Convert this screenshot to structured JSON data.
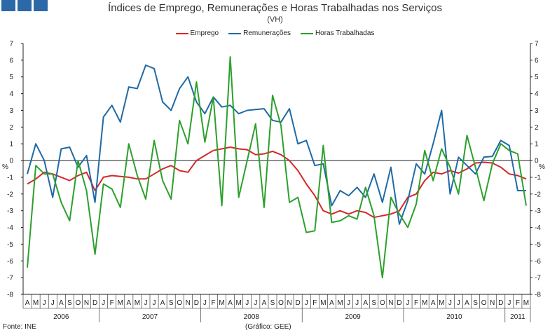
{
  "title": "Índices de Emprego, Remunerações e Horas Trabalhadas nos Serviços",
  "subtitle": "(VH)",
  "source": "Fonte: INE",
  "credit": "(Gráfico: GEE)",
  "chart_data": {
    "type": "line",
    "ylabel": "%",
    "ylabel_right": "%",
    "ylim": [
      -8,
      7
    ],
    "yticks": [
      7,
      6,
      5,
      4,
      3,
      2,
      1,
      0,
      -1,
      -2,
      -3,
      -4,
      -5,
      -6,
      -7,
      -8
    ],
    "grid": false,
    "legend_position": "top-center",
    "x": [
      "A",
      "M",
      "J",
      "J",
      "A",
      "S",
      "O",
      "N",
      "D",
      "J",
      "F",
      "M",
      "A",
      "M",
      "J",
      "J",
      "A",
      "S",
      "O",
      "N",
      "D",
      "J",
      "F",
      "M",
      "A",
      "M",
      "J",
      "J",
      "A",
      "S",
      "O",
      "N",
      "D",
      "J",
      "F",
      "M",
      "A",
      "M",
      "J",
      "J",
      "A",
      "S",
      "O",
      "N",
      "D",
      "J",
      "F",
      "M",
      "A",
      "M",
      "J",
      "J",
      "A",
      "S",
      "O",
      "N",
      "D",
      "J",
      "F",
      "M"
    ],
    "years": [
      {
        "label": "2006",
        "start": 0,
        "end": 8
      },
      {
        "label": "2007",
        "start": 9,
        "end": 20
      },
      {
        "label": "2008",
        "start": 21,
        "end": 32
      },
      {
        "label": "2009",
        "start": 33,
        "end": 44
      },
      {
        "label": "2010",
        "start": 45,
        "end": 56
      },
      {
        "label": "2011",
        "start": 57,
        "end": 59
      }
    ],
    "series": [
      {
        "name": "Emprego",
        "color": "#d62728",
        "values": [
          -1.4,
          -1.1,
          -0.7,
          -0.8,
          -1.0,
          -1.2,
          -0.9,
          -0.7,
          -1.8,
          -1.0,
          -0.9,
          -0.95,
          -1.0,
          -1.1,
          -1.1,
          -0.8,
          -0.5,
          -0.3,
          -0.6,
          -0.7,
          0.0,
          0.3,
          0.6,
          0.7,
          0.8,
          0.7,
          0.65,
          0.35,
          0.4,
          0.55,
          0.35,
          0.0,
          -0.6,
          -1.4,
          -2.1,
          -3.0,
          -3.2,
          -3.0,
          -3.2,
          -3.0,
          -3.1,
          -3.4,
          -3.3,
          -3.2,
          -3.0,
          -2.2,
          -2.0,
          -1.2,
          -0.7,
          -0.8,
          -0.6,
          -0.75,
          -0.5,
          -0.15,
          -0.1,
          -0.15,
          -0.4,
          -0.8,
          -0.9,
          -1.1
        ]
      },
      {
        "name": "Remunerações",
        "color": "#1f6aa5",
        "values": [
          -0.8,
          1.0,
          0.0,
          -2.2,
          0.7,
          0.8,
          -0.4,
          0.3,
          -2.5,
          2.6,
          3.3,
          2.3,
          4.4,
          4.3,
          5.7,
          5.5,
          3.5,
          3.0,
          4.3,
          5.0,
          3.5,
          2.8,
          3.8,
          3.2,
          3.3,
          2.8,
          3.0,
          3.05,
          3.1,
          2.4,
          2.3,
          3.1,
          1.0,
          1.2,
          -0.3,
          -0.2,
          -2.7,
          -1.8,
          -2.1,
          -1.6,
          -2.2,
          -0.8,
          -2.5,
          -0.4,
          -3.8,
          -2.4,
          -0.2,
          -0.8,
          1.0,
          3.0,
          -2.0,
          0.2,
          -0.3,
          -0.8,
          0.2,
          0.25,
          1.2,
          0.9,
          -1.8,
          -1.8
        ]
      },
      {
        "name": "Horas Trabalhadas",
        "color": "#2ca02c",
        "values": [
          -6.4,
          -0.3,
          -0.8,
          -0.8,
          -2.5,
          -3.6,
          0.0,
          -1.8,
          -5.6,
          -1.4,
          -1.7,
          -2.8,
          1.0,
          -0.9,
          -2.3,
          1.2,
          -1.2,
          -2.3,
          2.4,
          1.0,
          4.7,
          1.1,
          3.8,
          -2.7,
          6.2,
          -2.2,
          0.0,
          2.2,
          -2.8,
          3.9,
          2.1,
          -2.5,
          -2.2,
          -4.3,
          -4.2,
          0.9,
          -3.7,
          -3.6,
          -3.3,
          -3.5,
          -1.6,
          -3.3,
          -7.0,
          -2.2,
          -3.2,
          -4.0,
          -2.6,
          0.6,
          -1.2,
          0.7,
          -0.4,
          -2.0,
          1.5,
          -0.4,
          -2.4,
          -0.2,
          1.0,
          0.6,
          0.4,
          -2.7
        ]
      }
    ]
  }
}
